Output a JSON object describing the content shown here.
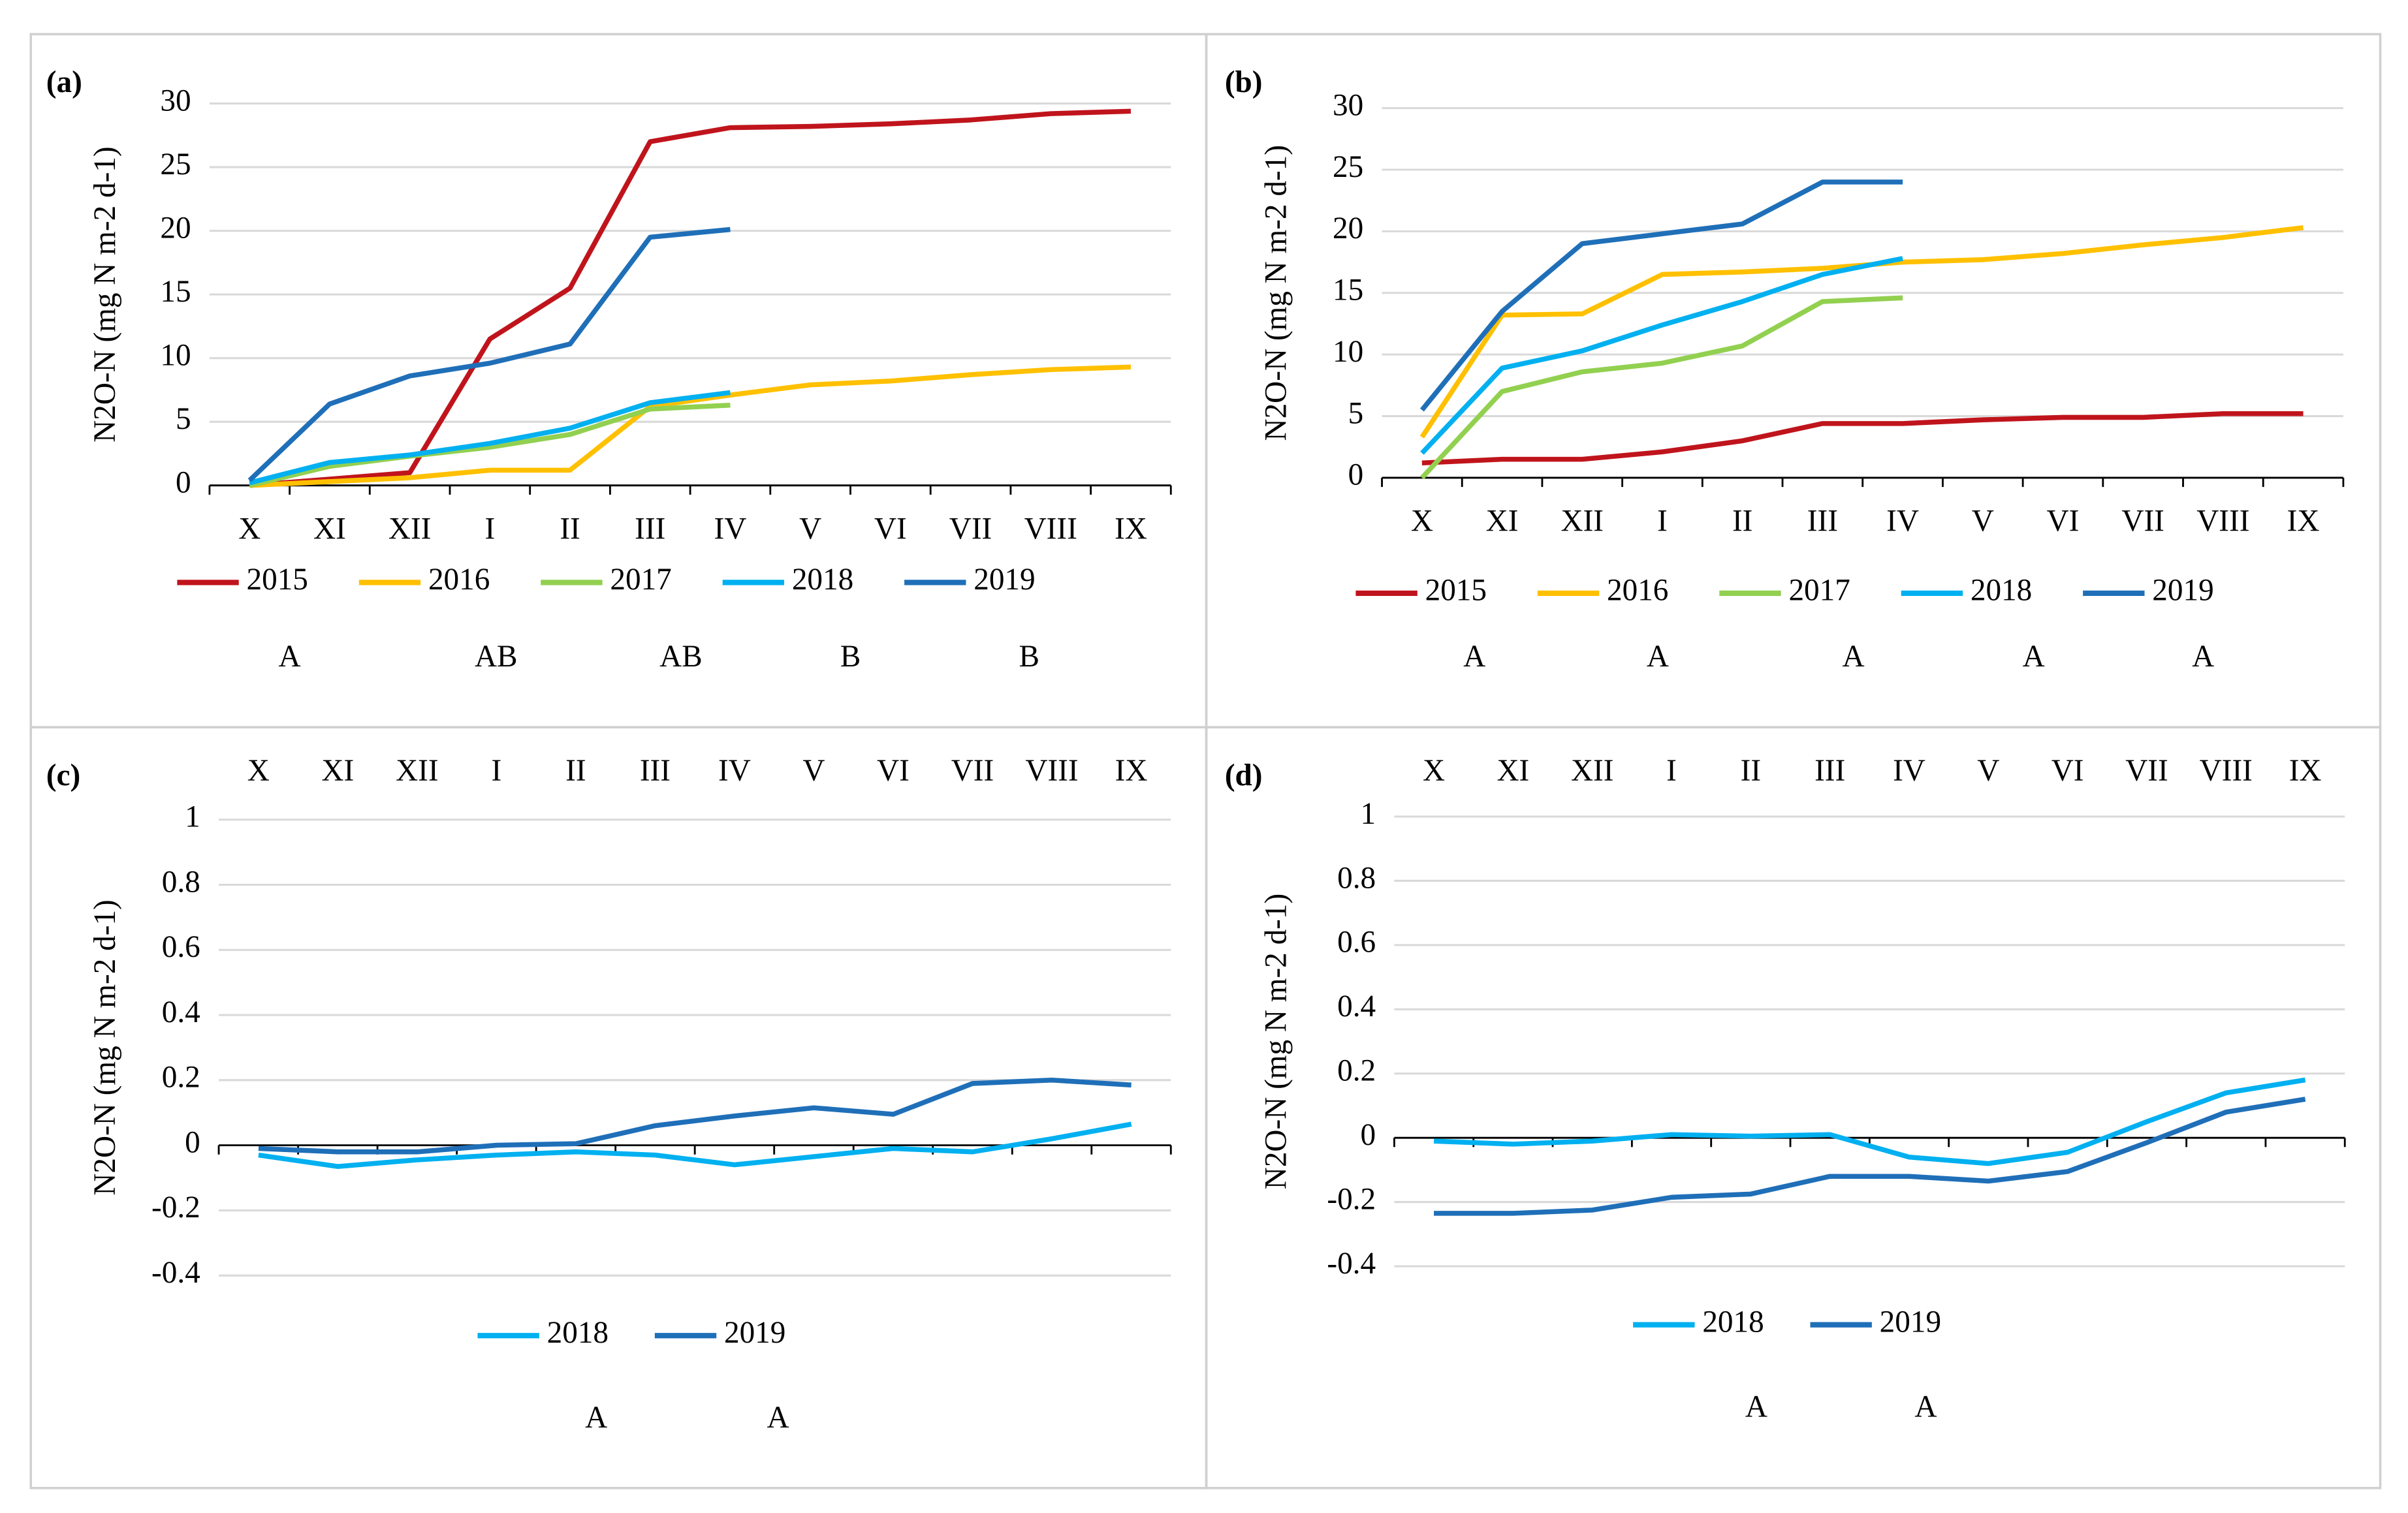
{
  "chart_data": [
    {
      "type": "line",
      "title": "(a)",
      "y_label": "N2O-N (mg N m-2 d-1)",
      "categories": [
        "X",
        "XI",
        "XII",
        "I",
        "II",
        "III",
        "IV",
        "V",
        "VI",
        "VII",
        "VIII",
        "IX"
      ],
      "ylim": [
        0,
        30
      ],
      "yticks": [
        0,
        5,
        10,
        15,
        20,
        25,
        30
      ],
      "grid": true,
      "category_axis": "bottom",
      "series": [
        {
          "name": "2015",
          "color": "#c0141c",
          "values": [
            0,
            0.5,
            1,
            11.5,
            15.5,
            27,
            28.1,
            28.2,
            28.4,
            28.7,
            29.2,
            29.4
          ]
        },
        {
          "name": "2016",
          "color": "#ffc000",
          "values": [
            0,
            0.3,
            0.6,
            1.2,
            1.2,
            6.2,
            7.1,
            7.9,
            8.2,
            8.7,
            9.1,
            9.3
          ]
        },
        {
          "name": "2017",
          "color": "#92d050",
          "values": [
            0,
            1.5,
            2.3,
            3,
            4,
            6,
            6.3,
            null,
            null,
            null,
            null,
            null
          ]
        },
        {
          "name": "2018",
          "color": "#00b0f0",
          "values": [
            0.2,
            1.8,
            2.4,
            3.3,
            4.5,
            6.5,
            7.3,
            null,
            null,
            null,
            null,
            null
          ]
        },
        {
          "name": "2019",
          "color": "#1f6fb8",
          "values": [
            0.4,
            6.4,
            8.6,
            9.6,
            11.1,
            19.5,
            20.1,
            null,
            null,
            null,
            null,
            null
          ]
        }
      ],
      "annotations": [
        "A",
        "AB",
        "AB",
        "B",
        "B"
      ]
    },
    {
      "type": "line",
      "title": "(b)",
      "y_label": "N2O-N (mg N m-2 d-1)",
      "categories": [
        "X",
        "XI",
        "XII",
        "I",
        "II",
        "III",
        "IV",
        "V",
        "VI",
        "VII",
        "VIII",
        "IX"
      ],
      "ylim": [
        0,
        30
      ],
      "yticks": [
        0,
        5,
        10,
        15,
        20,
        25,
        30
      ],
      "grid": true,
      "category_axis": "bottom",
      "series": [
        {
          "name": "2015",
          "color": "#c0141c",
          "values": [
            1.2,
            1.5,
            1.5,
            2.1,
            3.0,
            4.4,
            4.4,
            4.7,
            4.9,
            4.9,
            5.2,
            5.2
          ]
        },
        {
          "name": "2016",
          "color": "#ffc000",
          "values": [
            3.3,
            13.2,
            13.3,
            16.5,
            16.7,
            17.0,
            17.5,
            17.7,
            18.2,
            18.9,
            19.5,
            20.3
          ]
        },
        {
          "name": "2017",
          "color": "#92d050",
          "values": [
            0,
            7,
            8.6,
            9.3,
            10.7,
            14.3,
            14.6,
            null,
            null,
            null,
            null,
            null
          ]
        },
        {
          "name": "2018",
          "color": "#00b0f0",
          "values": [
            2,
            8.9,
            10.3,
            12.4,
            14.3,
            16.5,
            17.8,
            null,
            null,
            null,
            null,
            null
          ]
        },
        {
          "name": "2019",
          "color": "#1f6fb8",
          "values": [
            5.5,
            13.5,
            19,
            19.8,
            20.6,
            24,
            24,
            null,
            null,
            null,
            null,
            null
          ]
        }
      ],
      "annotations": [
        "A",
        "A",
        "A",
        "A",
        "A"
      ]
    },
    {
      "type": "line",
      "title": "(c)",
      "y_label": "N2O-N (mg N m-2 d-1)",
      "categories": [
        "X",
        "XI",
        "XII",
        "I",
        "II",
        "III",
        "IV",
        "V",
        "VI",
        "VII",
        "VIII",
        "IX"
      ],
      "ylim": [
        -0.4,
        1
      ],
      "yticks": [
        -0.4,
        -0.2,
        0,
        0.2,
        0.4,
        0.6,
        0.8,
        1
      ],
      "grid": true,
      "category_axis": "top",
      "series": [
        {
          "name": "2018",
          "color": "#00b0f0",
          "values": [
            -0.03,
            -0.065,
            -0.045,
            -0.03,
            -0.02,
            -0.03,
            -0.06,
            -0.035,
            -0.01,
            -0.02,
            0.02,
            0.065
          ]
        },
        {
          "name": "2019",
          "color": "#1f6fb8",
          "values": [
            -0.01,
            -0.02,
            -0.02,
            0,
            0.005,
            0.06,
            0.09,
            0.115,
            0.095,
            0.19,
            0.2,
            0.185
          ]
        }
      ],
      "annotations": [
        "A",
        "A"
      ]
    },
    {
      "type": "line",
      "title": "(d)",
      "y_label": "N2O-N (mg N m-2 d-1)",
      "categories": [
        "X",
        "XI",
        "XII",
        "I",
        "II",
        "III",
        "IV",
        "V",
        "VI",
        "VII",
        "VIII",
        "IX"
      ],
      "ylim": [
        -0.4,
        1
      ],
      "yticks": [
        -0.4,
        -0.2,
        0,
        0.2,
        0.4,
        0.6,
        0.8,
        1
      ],
      "grid": true,
      "category_axis": "top",
      "series": [
        {
          "name": "2018",
          "color": "#00b0f0",
          "values": [
            -0.01,
            -0.02,
            -0.01,
            0.01,
            0.005,
            0.01,
            -0.06,
            -0.08,
            -0.045,
            0.05,
            0.14,
            0.18
          ]
        },
        {
          "name": "2019",
          "color": "#1f6fb8",
          "values": [
            -0.235,
            -0.235,
            -0.225,
            -0.185,
            -0.175,
            -0.12,
            -0.12,
            -0.135,
            -0.105,
            -0.015,
            0.08,
            0.12
          ]
        }
      ],
      "annotations": [
        "A",
        "A"
      ]
    }
  ]
}
